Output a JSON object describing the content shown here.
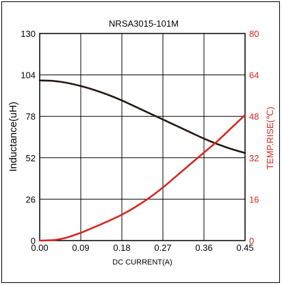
{
  "chart_data": {
    "type": "line",
    "title": "NRSA3015-101M",
    "xlabel": "DC CURRENT(A)",
    "ylabel_left": "Inductance(uH)",
    "ylabel_right": "TEMP.RISE(℃)",
    "xlim": [
      0,
      0.45
    ],
    "ylim_left": [
      0,
      130
    ],
    "ylim_right": [
      0,
      80
    ],
    "x_ticks": [
      "0.00",
      "0.09",
      "0.18",
      "0.27",
      "0.36",
      "0.45"
    ],
    "y_left_ticks": [
      "0",
      "26",
      "52",
      "78",
      "104",
      "130"
    ],
    "y_right_ticks": [
      "0",
      "16",
      "32",
      "48",
      "64",
      "80"
    ],
    "grid": true,
    "colors": {
      "inductance": "#231815",
      "temp_rise": "#d7261e",
      "right_axis": "#d7261e"
    },
    "series": [
      {
        "axis": "left",
        "x": [
          0.0,
          0.03,
          0.06,
          0.09,
          0.12,
          0.15,
          0.18,
          0.21,
          0.24,
          0.27,
          0.3,
          0.33,
          0.36,
          0.39,
          0.42,
          0.45
        ],
        "values": [
          100.5,
          100.2,
          99.0,
          97.0,
          94.5,
          91.5,
          88.0,
          84.0,
          80.0,
          76.0,
          72.0,
          68.0,
          64.0,
          60.5,
          57.5,
          55.0
        ]
      },
      {
        "axis": "right",
        "x": [
          0.0,
          0.03,
          0.045,
          0.06,
          0.09,
          0.12,
          0.15,
          0.18,
          0.21,
          0.24,
          0.27,
          0.3,
          0.33,
          0.36,
          0.39,
          0.42,
          0.45
        ],
        "values": [
          0.0,
          0.2,
          0.6,
          1.2,
          3.0,
          5.2,
          7.5,
          10.0,
          13.0,
          16.5,
          20.5,
          25.0,
          29.5,
          34.0,
          38.5,
          43.5,
          48.5
        ]
      }
    ]
  }
}
